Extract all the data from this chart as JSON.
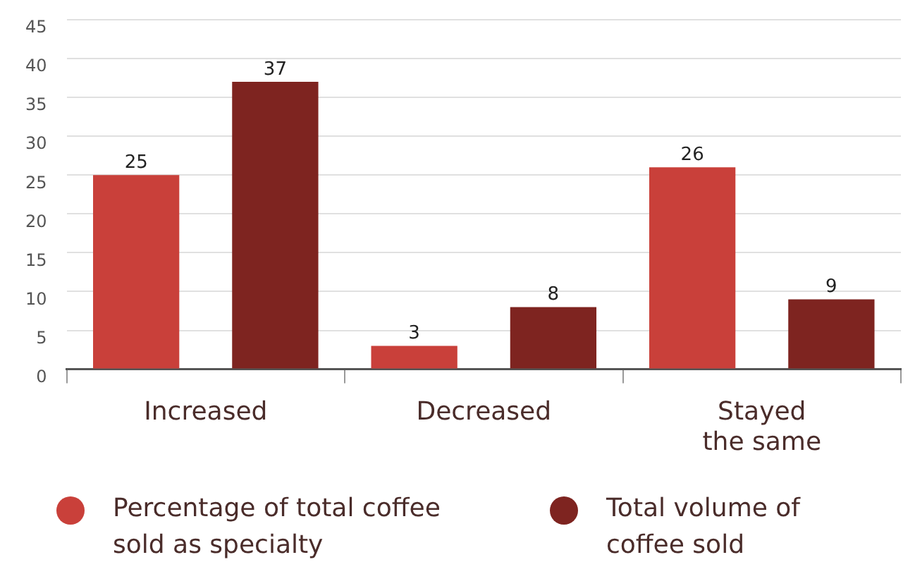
{
  "chart_data": {
    "type": "bar",
    "categories": [
      "Increased",
      "Decreased",
      "Stayed the same"
    ],
    "series": [
      {
        "name": "Percentage of total coffee sold as specialty",
        "color": "#c9403a",
        "values": [
          25,
          3,
          26
        ]
      },
      {
        "name": "Total volume of coffee sold",
        "color": "#7e2420",
        "values": [
          37,
          8,
          9
        ]
      }
    ],
    "ylim": [
      0,
      45
    ],
    "yticks": [
      0,
      5,
      10,
      15,
      20,
      25,
      30,
      35,
      40,
      45
    ],
    "grid": "y",
    "legend": "bottom",
    "data_labels": true
  }
}
